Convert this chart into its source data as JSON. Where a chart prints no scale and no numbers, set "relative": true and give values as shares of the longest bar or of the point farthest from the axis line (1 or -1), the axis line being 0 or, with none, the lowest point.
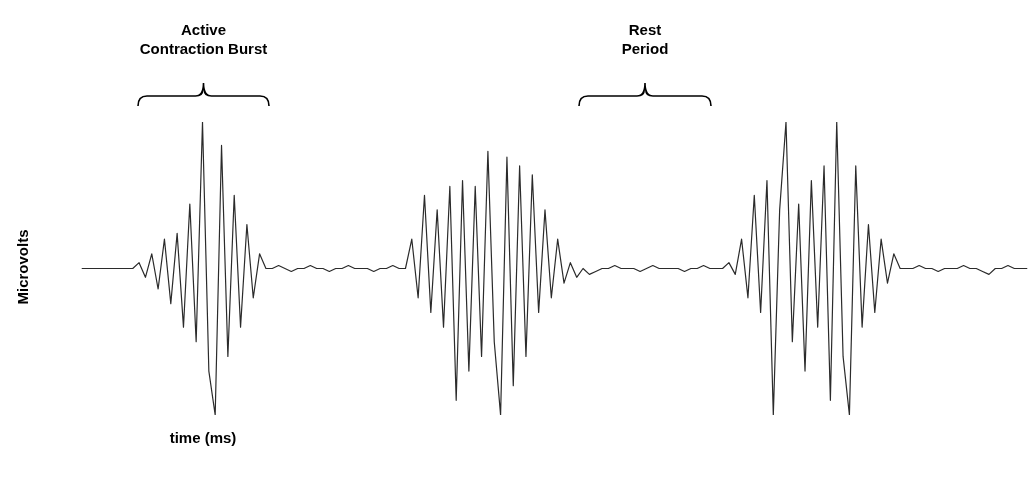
{
  "chart_data": {
    "type": "line",
    "relative": true,
    "color": "#2b2b2b",
    "xlabel": "time (ms)",
    "ylabel": "Microvolts",
    "annotations": [
      "Active\nContraction Burst",
      "Rest\nPeriod"
    ],
    "categories": [
      null,
      null,
      null,
      null,
      null,
      null,
      null,
      null,
      null,
      null,
      null,
      null,
      null,
      null,
      null,
      null,
      null,
      null,
      null,
      null,
      null,
      null,
      null,
      null,
      null,
      null,
      null,
      null,
      null,
      null,
      null,
      null,
      null,
      null,
      null,
      null,
      null,
      null,
      null,
      null,
      null,
      null,
      null,
      null,
      null,
      null,
      null,
      null,
      null,
      null,
      null,
      null,
      null,
      null,
      null,
      null,
      null,
      null,
      null,
      null,
      null,
      null,
      null,
      null,
      null,
      null,
      null,
      null,
      null,
      null,
      null,
      null,
      null,
      null,
      null,
      null,
      null,
      null,
      null,
      null,
      null,
      null,
      null,
      null,
      null,
      null,
      null,
      null,
      null,
      null,
      null,
      null,
      null,
      null,
      null,
      null,
      null,
      null,
      null,
      null,
      null,
      null,
      null,
      null,
      null,
      null,
      null,
      null,
      null,
      null,
      null,
      null,
      null,
      null,
      null,
      null,
      null,
      null,
      null,
      null,
      null,
      null,
      null,
      null,
      null,
      null,
      null,
      null,
      null,
      null,
      null,
      null,
      null,
      null,
      null,
      null,
      null,
      null,
      null,
      null,
      null,
      null,
      null,
      null,
      null,
      null,
      null,
      null,
      null,
      null
    ],
    "values": [
      0.5,
      0.5,
      0.5,
      0.5,
      0.5,
      0.5,
      0.5,
      0.5,
      0.5,
      0.52,
      0.47,
      0.55,
      0.43,
      0.6,
      0.38,
      0.62,
      0.3,
      0.72,
      0.25,
      1.0,
      0.15,
      0.0,
      0.92,
      0.2,
      0.75,
      0.3,
      0.65,
      0.4,
      0.55,
      0.5,
      0.5,
      0.51,
      0.5,
      0.49,
      0.5,
      0.5,
      0.51,
      0.5,
      0.5,
      0.49,
      0.5,
      0.5,
      0.51,
      0.5,
      0.5,
      0.5,
      0.49,
      0.5,
      0.5,
      0.51,
      0.5,
      0.5,
      0.6,
      0.4,
      0.75,
      0.35,
      0.7,
      0.3,
      0.78,
      0.05,
      0.8,
      0.15,
      0.78,
      0.2,
      0.9,
      0.25,
      0.0,
      0.88,
      0.1,
      0.85,
      0.2,
      0.82,
      0.35,
      0.7,
      0.4,
      0.6,
      0.45,
      0.52,
      0.47,
      0.5,
      0.48,
      0.49,
      0.5,
      0.5,
      0.51,
      0.5,
      0.5,
      0.5,
      0.49,
      0.5,
      0.51,
      0.5,
      0.5,
      0.5,
      0.5,
      0.49,
      0.5,
      0.5,
      0.51,
      0.5,
      0.5,
      0.5,
      0.52,
      0.48,
      0.6,
      0.4,
      0.75,
      0.35,
      0.8,
      0.0,
      0.7,
      1.0,
      0.25,
      0.72,
      0.15,
      0.8,
      0.3,
      0.85,
      0.05,
      1.0,
      0.2,
      0.0,
      0.85,
      0.3,
      0.65,
      0.35,
      0.6,
      0.45,
      0.55,
      0.5,
      0.5,
      0.5,
      0.51,
      0.5,
      0.5,
      0.49,
      0.5,
      0.5,
      0.5,
      0.51,
      0.5,
      0.5,
      0.49,
      0.48,
      0.5,
      0.5,
      0.51,
      0.5,
      0.5,
      0.5
    ]
  }
}
